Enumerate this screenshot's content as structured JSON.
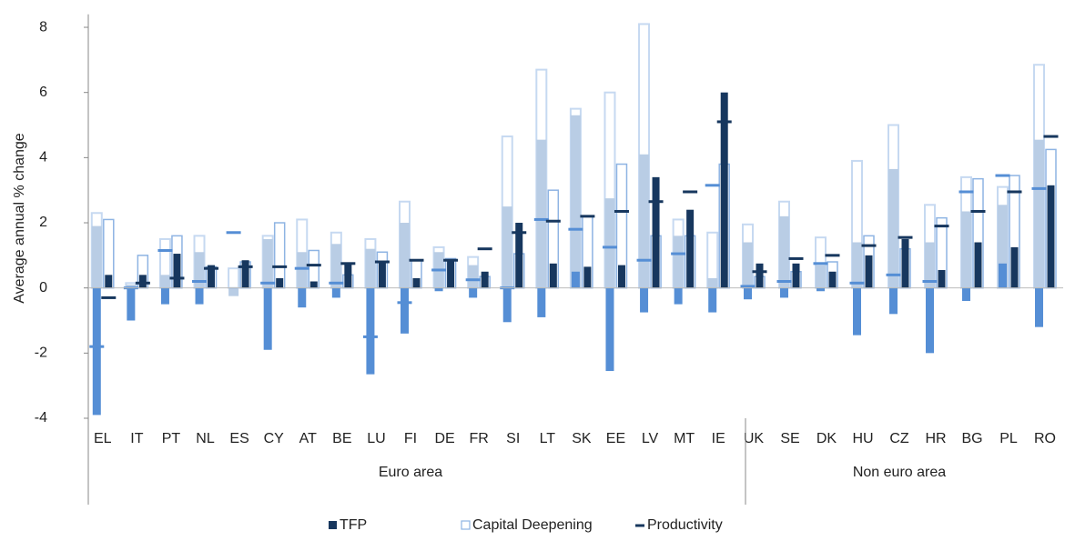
{
  "chart_data": {
    "type": "bar",
    "y_label": "Average  annual % change",
    "groups": [
      {
        "label": "Euro area",
        "categories": [
          "EL",
          "IT",
          "PT",
          "NL",
          "ES",
          "CY",
          "AT",
          "BE",
          "LU",
          "FI",
          "DE",
          "FR",
          "SI",
          "LT",
          "SK",
          "EE",
          "LV",
          "MT",
          "IE"
        ]
      },
      {
        "label": "Non euro area",
        "categories": [
          "UK",
          "SE",
          "DK",
          "HU",
          "CZ",
          "HR",
          "BG",
          "PL",
          "RO"
        ]
      }
    ],
    "series": [
      {
        "color": "#c6d9f1",
        "values": [
          2.3,
          0.15,
          1.5,
          1.6,
          0.6,
          1.6,
          2.1,
          1.7,
          1.5,
          2.65,
          1.25,
          0.95,
          4.65,
          6.7,
          5.5,
          6.0,
          8.1,
          2.1,
          1.7,
          1.95,
          2.65,
          1.55,
          3.9,
          5.0,
          2.55,
          3.4,
          3.1,
          6.85
        ]
      },
      {
        "color": "#b9cde5",
        "values": [
          1.9,
          0.1,
          0.4,
          1.1,
          -0.25,
          1.5,
          1.1,
          1.35,
          1.2,
          2.0,
          1.1,
          0.7,
          2.5,
          4.55,
          5.3,
          2.75,
          4.1,
          1.6,
          0.3,
          1.4,
          2.2,
          0.7,
          1.4,
          3.65,
          1.4,
          2.35,
          2.55,
          4.55
        ]
      },
      {
        "color": "#558ed5",
        "values": [
          -3.9,
          -1.0,
          -0.5,
          -0.5,
          0.0,
          -1.9,
          -0.6,
          -0.3,
          -2.65,
          -1.4,
          -0.1,
          -0.3,
          -1.05,
          -0.9,
          0.5,
          -2.55,
          -0.75,
          -0.5,
          -0.75,
          -0.35,
          -0.3,
          -0.1,
          -1.45,
          -0.8,
          -2.0,
          -0.4,
          0.75,
          -1.2
        ]
      },
      {
        "color": "#558ed5",
        "values": [
          -1.8,
          0.0,
          1.15,
          0.2,
          1.7,
          0.15,
          0.6,
          0.15,
          -1.5,
          -0.45,
          0.55,
          0.25,
          0.0,
          2.1,
          1.8,
          1.25,
          0.85,
          1.05,
          3.15,
          0.05,
          0.2,
          0.75,
          0.15,
          0.4,
          0.2,
          2.95,
          3.45,
          3.05
        ]
      },
      {
        "name": "Capital Deepening",
        "color": "#8eb4e3",
        "values": [
          2.1,
          1.0,
          1.6,
          0.65,
          0.8,
          2.0,
          1.15,
          0.4,
          1.1,
          0.85,
          0.9,
          0.35,
          1.05,
          3.0,
          2.2,
          3.8,
          1.6,
          1.6,
          3.8,
          0.35,
          0.5,
          0.8,
          1.6,
          1.2,
          2.15,
          3.35,
          3.45,
          4.25
        ]
      },
      {
        "name": "TFP",
        "color": "#17375e",
        "values": [
          0.4,
          0.4,
          1.05,
          0.7,
          0.85,
          0.3,
          0.2,
          0.75,
          0.8,
          0.3,
          0.85,
          0.5,
          2.0,
          0.75,
          0.65,
          0.7,
          3.4,
          2.4,
          6.0,
          0.75,
          0.75,
          0.5,
          1.0,
          1.5,
          0.55,
          1.4,
          1.25,
          3.15
        ]
      },
      {
        "name": "Productivity",
        "color": "#17375e",
        "values": [
          -0.3,
          0.15,
          0.3,
          0.6,
          0.65,
          0.65,
          0.7,
          0.75,
          0.8,
          0.85,
          0.85,
          1.2,
          1.7,
          2.05,
          2.2,
          2.35,
          2.65,
          2.95,
          5.1,
          0.5,
          0.9,
          1.0,
          1.3,
          1.55,
          1.9,
          2.35,
          2.95,
          4.65
        ]
      }
    ],
    "ylim": [
      -4,
      8.4
    ],
    "yticks": [
      -4,
      -2,
      0,
      2,
      4,
      6,
      8
    ]
  }
}
